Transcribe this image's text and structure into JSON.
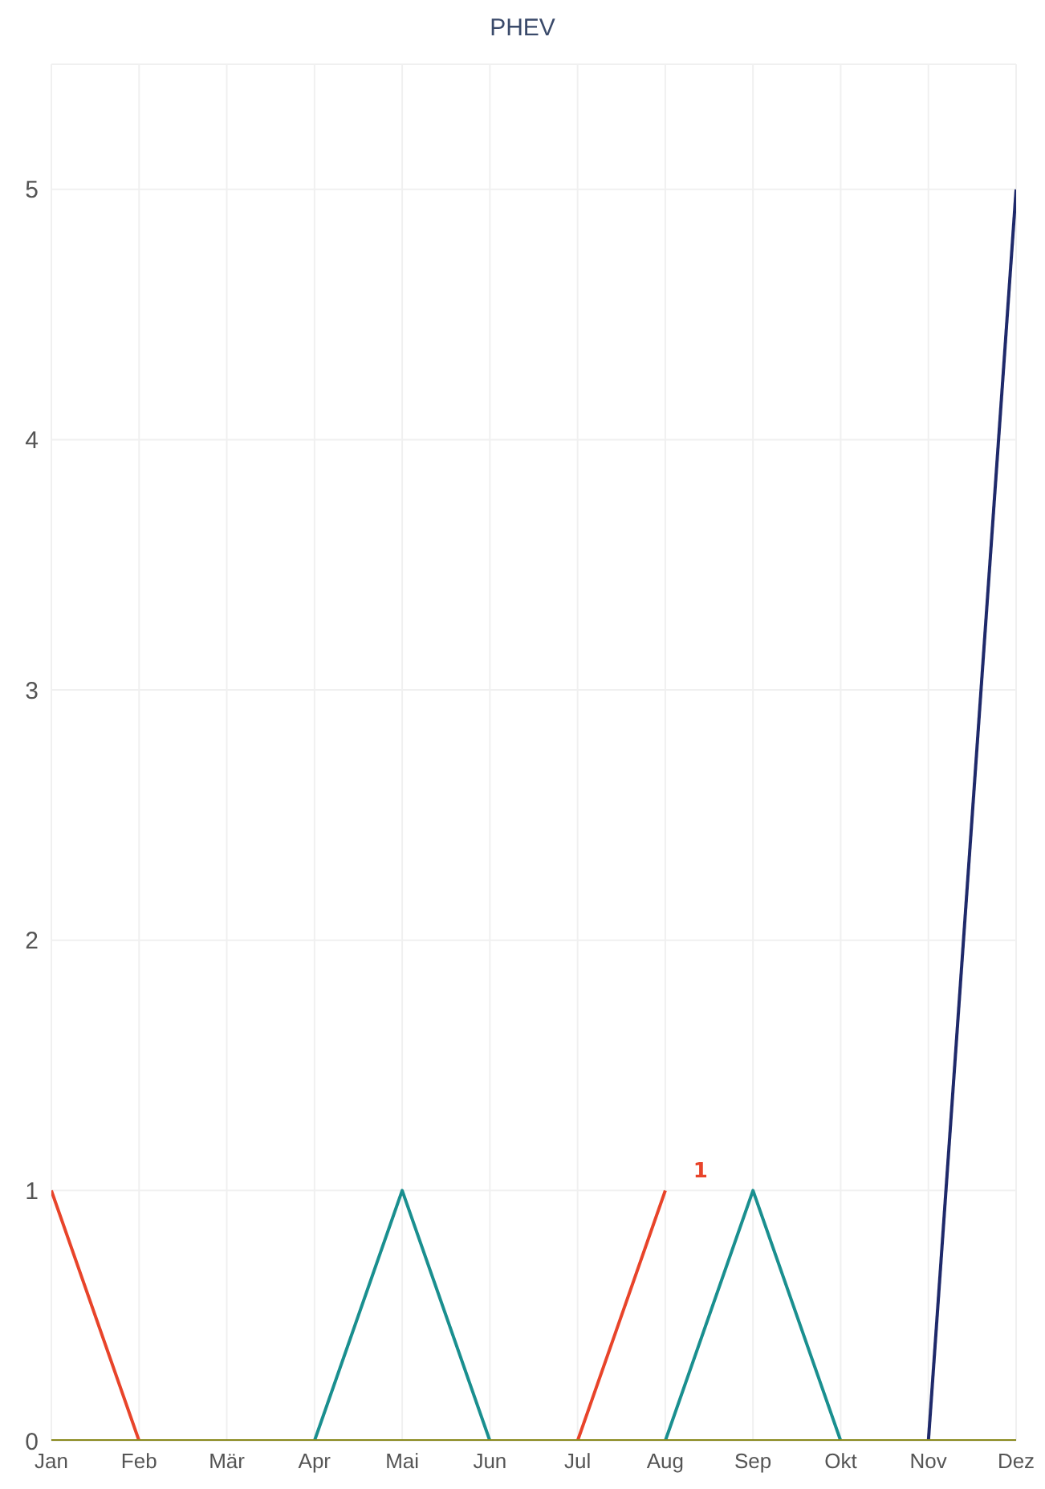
{
  "chart_data": {
    "type": "line",
    "title": "PHEV",
    "categories": [
      "Jan",
      "Feb",
      "Mär",
      "Apr",
      "Mai",
      "Jun",
      "Jul",
      "Aug",
      "Sep",
      "Okt",
      "Nov",
      "Dez"
    ],
    "series": [
      {
        "color": "#1f2a6b",
        "values": [
          null,
          null,
          null,
          null,
          null,
          null,
          null,
          null,
          null,
          null,
          0,
          5
        ]
      },
      {
        "color": "#1a8f8f",
        "values": [
          null,
          null,
          null,
          0,
          1,
          0,
          null,
          0,
          1,
          0,
          null,
          null
        ]
      },
      {
        "color": "#e8442a",
        "values": [
          1,
          0,
          null,
          null,
          null,
          null,
          0,
          1,
          null,
          null,
          null,
          null
        ],
        "value_labels": [
          null,
          null,
          null,
          null,
          null,
          null,
          null,
          "1",
          null,
          null,
          null,
          null
        ]
      },
      {
        "color": "#8a8a1e",
        "values": [
          0,
          0,
          0,
          0,
          0,
          0,
          0,
          0,
          0,
          0,
          0,
          0
        ]
      }
    ],
    "ylim": [
      0,
      5.5
    ],
    "yticks": [
      0,
      1,
      2,
      3,
      4,
      5
    ],
    "grid": true,
    "legend": false,
    "marker": "none",
    "line_style": "solid"
  }
}
